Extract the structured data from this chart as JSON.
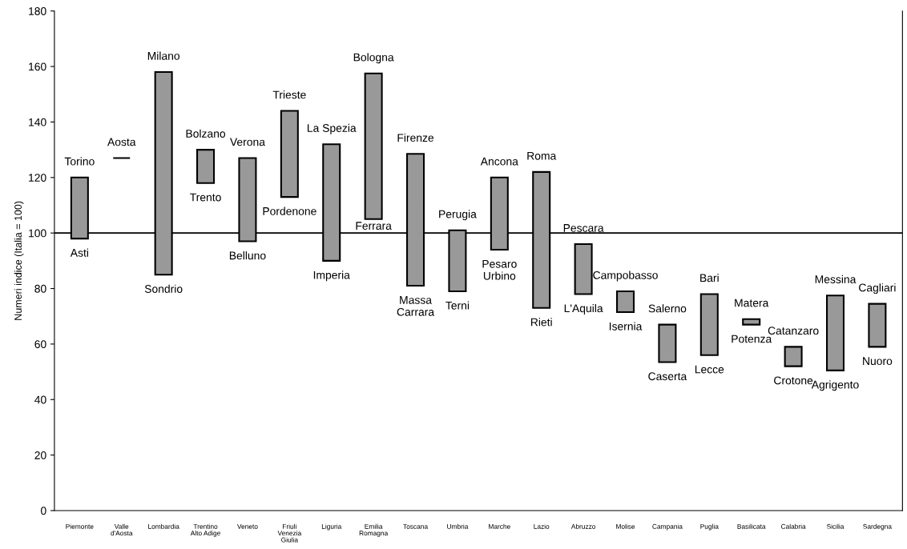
{
  "chart_data": {
    "type": "bar",
    "ylabel": "Numeri indice (Italia = 100)",
    "categories": [
      "Piemonte",
      "Valle\nd'Aosta",
      "Lombardia",
      "Trentino\nAlto Adige",
      "Veneto",
      "Friuli\nVenezia\nGiulia",
      "Liguria",
      "Emilia\nRomagna",
      "Toscana",
      "Umbria",
      "Marche",
      "Lazio",
      "Abruzzo",
      "Molise",
      "Campania",
      "Puglia",
      "Basilicata",
      "Calabria",
      "Sicilia",
      "Sardegna"
    ],
    "base": [
      98,
      127,
      85,
      118,
      97,
      113,
      90,
      105,
      81,
      79,
      94,
      73,
      78,
      71.5,
      53.5,
      56,
      67,
      52,
      50.5,
      59
    ],
    "values": [
      22,
      0,
      73,
      12,
      30,
      31,
      42,
      52.5,
      47.5,
      22,
      26,
      49,
      18,
      7.5,
      13.5,
      22,
      2,
      7,
      27,
      15.5
    ],
    "colors": [
      "#999999",
      "#000000",
      "#999999",
      "#999999",
      "#999999",
      "#999999",
      "#999999",
      "#999999",
      "#999999",
      "#999999",
      "#999999",
      "#999999",
      "#999999",
      "#999999",
      "#999999",
      "#999999",
      "#999999",
      "#999999",
      "#999999",
      "#999999"
    ],
    "ylim": [
      0,
      180
    ],
    "yticks": [
      0,
      20,
      40,
      60,
      80,
      100,
      120,
      140,
      160,
      180
    ],
    "ref_lines": [
      {
        "axis": "y",
        "value": 100,
        "color": "#000000"
      }
    ],
    "annotations": [
      {
        "text": "Torino",
        "x": "Piemonte",
        "y": 120
      },
      {
        "text": "Asti",
        "x": "Piemonte",
        "y": 98
      },
      {
        "text": "Aosta",
        "x": "Valle\nd'Aosta",
        "y": 127
      },
      {
        "text": "Milano",
        "x": "Lombardia",
        "y": 158
      },
      {
        "text": "Sondrio",
        "x": "Lombardia",
        "y": 85
      },
      {
        "text": "Bolzano",
        "x": "Trentino\nAlto Adige",
        "y": 130
      },
      {
        "text": "Trento",
        "x": "Trentino\nAlto Adige",
        "y": 118
      },
      {
        "text": "Verona",
        "x": "Veneto",
        "y": 127
      },
      {
        "text": "Belluno",
        "x": "Veneto",
        "y": 97
      },
      {
        "text": "Trieste",
        "x": "Friuli\nVenezia\nGiulia",
        "y": 144
      },
      {
        "text": "Pordenone",
        "x": "Friuli\nVenezia\nGiulia",
        "y": 113
      },
      {
        "text": "La Spezia",
        "x": "Liguria",
        "y": 132
      },
      {
        "text": "Imperia",
        "x": "Liguria",
        "y": 90
      },
      {
        "text": "Bologna",
        "x": "Emilia\nRomagna",
        "y": 157.5
      },
      {
        "text": "Ferrara",
        "x": "Emilia\nRomagna",
        "y": 105
      },
      {
        "text": "Firenze",
        "x": "Toscana",
        "y": 128.5
      },
      {
        "text": "Massa\nCarrara",
        "x": "Toscana",
        "y": 81
      },
      {
        "text": "Perugia",
        "x": "Umbria",
        "y": 101
      },
      {
        "text": "Terni",
        "x": "Umbria",
        "y": 79
      },
      {
        "text": "Ancona",
        "x": "Marche",
        "y": 120
      },
      {
        "text": "Pesaro\nUrbino",
        "x": "Marche",
        "y": 94
      },
      {
        "text": "Roma",
        "x": "Lazio",
        "y": 122
      },
      {
        "text": "Rieti",
        "x": "Lazio",
        "y": 73
      },
      {
        "text": "Pescara",
        "x": "Abruzzo",
        "y": 96
      },
      {
        "text": "L'Aquila",
        "x": "Abruzzo",
        "y": 78
      },
      {
        "text": "Campobasso",
        "x": "Molise",
        "y": 79
      },
      {
        "text": "Isernia",
        "x": "Molise",
        "y": 71.5
      },
      {
        "text": "Salerno",
        "x": "Campania",
        "y": 67
      },
      {
        "text": "Caserta",
        "x": "Campania",
        "y": 53.5
      },
      {
        "text": "Bari",
        "x": "Puglia",
        "y": 78
      },
      {
        "text": "Lecce",
        "x": "Puglia",
        "y": 56
      },
      {
        "text": "Matera",
        "x": "Basilicata",
        "y": 69
      },
      {
        "text": "Potenza",
        "x": "Basilicata",
        "y": 67
      },
      {
        "text": "Catanzaro",
        "x": "Calabria",
        "y": 59
      },
      {
        "text": "Crotone",
        "x": "Calabria",
        "y": 52
      },
      {
        "text": "Messina",
        "x": "Sicilia",
        "y": 77.5
      },
      {
        "text": "Agrigento",
        "x": "Sicilia",
        "y": 50.5
      },
      {
        "text": "Cagliari",
        "x": "Sardegna",
        "y": 74.5
      },
      {
        "text": "Nuoro",
        "x": "Sardegna",
        "y": 59
      }
    ]
  }
}
